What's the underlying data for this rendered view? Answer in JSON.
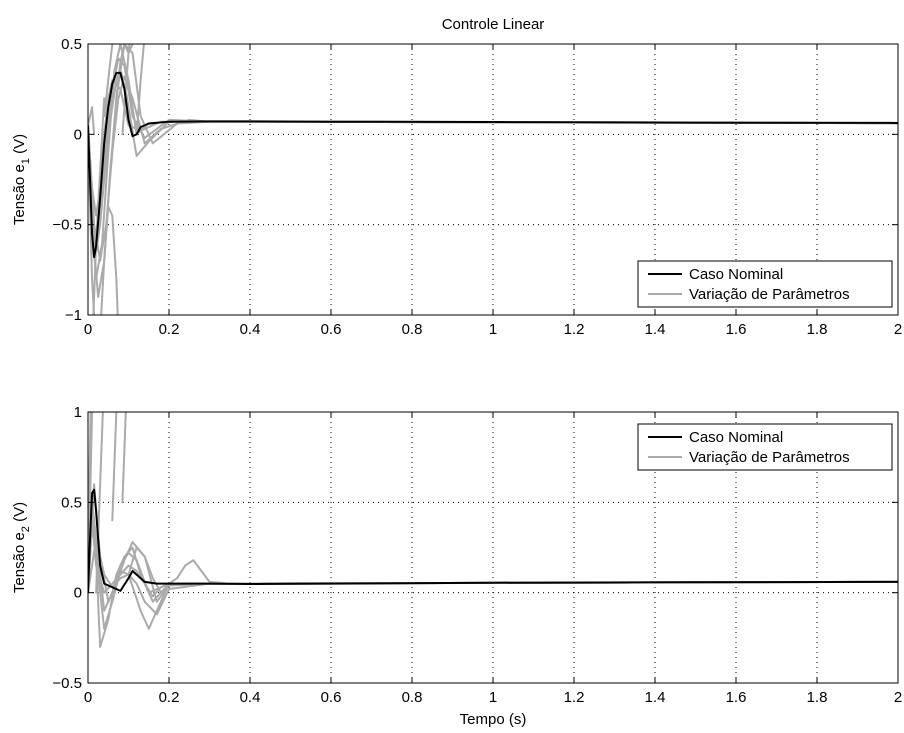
{
  "chart_data": [
    {
      "type": "line",
      "title": "Controle Linear",
      "xlabel": "",
      "ylabel_main": "Tensão e",
      "ylabel_sub": "1",
      "ylabel_unit": " (V)",
      "xlim": [
        0,
        2
      ],
      "ylim": [
        -1,
        0.5
      ],
      "xticks": [
        0,
        0.2,
        0.4,
        0.6,
        0.8,
        1,
        1.2,
        1.4,
        1.6,
        1.8,
        2
      ],
      "xtick_labels": [
        "0",
        "0.2",
        "0.4",
        "0.6",
        "0.8",
        "1",
        "1.2",
        "1.4",
        "1.6",
        "1.8",
        "2"
      ],
      "yticks": [
        -1,
        -0.5,
        0,
        0.5
      ],
      "ytick_labels": [
        "−1",
        "−0.5",
        "0",
        "0.5"
      ],
      "grid": true,
      "legend_position": "bottom-right",
      "legend": [
        "Caso Nominal",
        "Variação de Parâmetros"
      ],
      "colors": {
        "nominal": "#000000",
        "variation": "#aaaaaa"
      },
      "series": [
        {
          "name": "Caso Nominal",
          "x": [
            0,
            0.005,
            0.01,
            0.015,
            0.02,
            0.03,
            0.04,
            0.05,
            0.06,
            0.07,
            0.08,
            0.09,
            0.1,
            0.11,
            0.12,
            0.13,
            0.15,
            0.2,
            0.3,
            0.4,
            0.6,
            1.0,
            1.5,
            2.0
          ],
          "y": [
            0.05,
            -0.25,
            -0.55,
            -0.68,
            -0.62,
            -0.35,
            -0.05,
            0.15,
            0.28,
            0.34,
            0.34,
            0.25,
            0.08,
            -0.01,
            0.0,
            0.04,
            0.06,
            0.07,
            0.072,
            0.072,
            0.07,
            0.068,
            0.065,
            0.063
          ]
        },
        {
          "name": "Variação de Parâmetros",
          "runs": [
            {
              "x": [
                0,
                0.01,
                0.02,
                0.035,
                0.05,
                0.065,
                0.08,
                0.1,
                0.12,
                0.15,
                0.2,
                0.3,
                2.0
              ],
              "y": [
                0.05,
                -0.5,
                -0.8,
                -0.6,
                -0.1,
                0.35,
                0.5,
                0.3,
                0.0,
                0.06,
                0.07,
                0.07,
                0.062
              ]
            },
            {
              "x": [
                0,
                0.01,
                0.02,
                0.03,
                0.045,
                0.06,
                0.075,
                0.09,
                0.11,
                0.14,
                0.2,
                0.3,
                2.0
              ],
              "y": [
                0.05,
                -0.4,
                -0.6,
                -0.45,
                -0.05,
                0.25,
                0.42,
                0.38,
                0.1,
                -0.02,
                0.08,
                0.07,
                0.062
              ]
            },
            {
              "x": [
                0,
                0.012,
                0.025,
                0.04,
                0.055,
                0.07,
                0.09,
                0.11,
                0.13,
                0.16,
                0.22,
                0.3,
                2.0
              ],
              "y": [
                0.05,
                -0.55,
                -0.9,
                -0.7,
                -0.2,
                0.2,
                0.5,
                0.45,
                0.1,
                -0.05,
                0.06,
                0.07,
                0.062
              ]
            },
            {
              "x": [
                0,
                0.01,
                0.02,
                0.03,
                0.04,
                0.05,
                0.06,
                0.08,
                0.1,
                0.13,
                0.18,
                0.3,
                2.0
              ],
              "y": [
                0.05,
                -0.3,
                -0.45,
                -0.3,
                0.0,
                0.2,
                0.3,
                0.25,
                0.05,
                0.02,
                0.07,
                0.07,
                0.062
              ]
            },
            {
              "x": [
                0,
                0.01,
                0.02,
                0.03,
                0.05,
                0.07,
                0.08,
                0.095,
                0.12,
                0.15,
                0.2,
                0.3,
                2.0
              ],
              "y": [
                0.05,
                -0.35,
                -0.65,
                -0.5,
                0.0,
                0.3,
                0.36,
                0.22,
                -0.12,
                -0.04,
                0.07,
                0.072,
                0.062
              ]
            },
            {
              "x": [
                0,
                0.015,
                0.03,
                0.045,
                0.06,
                0.075,
                0.09,
                0.11,
                0.14,
                0.18,
                0.25,
                0.3,
                2.0
              ],
              "y": [
                0.05,
                -0.5,
                -0.7,
                -0.5,
                -0.1,
                0.2,
                0.32,
                0.2,
                -0.05,
                0.03,
                0.08,
                0.07,
                0.062
              ]
            },
            {
              "x": [
                0,
                0.005,
                0.01,
                0.015,
                0.02,
                0.025,
                0.03
              ],
              "y": [
                0.05,
                -0.4,
                -0.8,
                -1.0,
                -1.2,
                -1.4,
                -1.6
              ]
            },
            {
              "x": [
                0.01,
                0.015,
                0.02,
                0.025,
                0.03,
                0.035,
                0.04
              ],
              "y": [
                -1.2,
                -0.9,
                -0.6,
                -0.4,
                -0.2,
                0.0,
                0.2
              ]
            },
            {
              "x": [
                0.03,
                0.04,
                0.05,
                0.06,
                0.07,
                0.075
              ],
              "y": [
                -1.1,
                -0.7,
                -0.4,
                -0.45,
                -0.8,
                -1.1
              ]
            },
            {
              "x": [
                0.04,
                0.05,
                0.06,
                0.07,
                0.08,
                0.09
              ],
              "y": [
                0.1,
                0.3,
                0.5,
                0.65,
                0.8,
                0.9
              ]
            },
            {
              "x": [
                0.07,
                0.08,
                0.09,
                0.1,
                0.11,
                0.12
              ],
              "y": [
                0.2,
                0.4,
                0.5,
                0.45,
                0.5,
                0.7
              ]
            },
            {
              "x": [
                0.085,
                0.095,
                0.1,
                0.105,
                0.11
              ],
              "y": [
                0.0,
                0.3,
                0.45,
                0.55,
                0.7
              ]
            },
            {
              "x": [
                0.12,
                0.13,
                0.14,
                0.15,
                0.16
              ],
              "y": [
                0.0,
                0.3,
                0.55,
                0.75,
                0.9
              ]
            },
            {
              "x": [
                0.0,
                0.005,
                0.01,
                0.015
              ],
              "y": [
                0.05,
                0.1,
                0.15,
                0.0
              ]
            }
          ]
        }
      ]
    },
    {
      "type": "line",
      "title": "",
      "xlabel": "Tempo (s)",
      "ylabel_main": "Tensão e",
      "ylabel_sub": "2",
      "ylabel_unit": " (V)",
      "xlim": [
        0,
        2
      ],
      "ylim": [
        -0.5,
        1
      ],
      "xticks": [
        0,
        0.2,
        0.4,
        0.6,
        0.8,
        1,
        1.2,
        1.4,
        1.6,
        1.8,
        2
      ],
      "xtick_labels": [
        "0",
        "0.2",
        "0.4",
        "0.6",
        "0.8",
        "1",
        "1.2",
        "1.4",
        "1.6",
        "1.8",
        "2"
      ],
      "yticks": [
        -0.5,
        0,
        0.5,
        1
      ],
      "ytick_labels": [
        "−0.5",
        "0",
        "0.5",
        "1"
      ],
      "grid": true,
      "legend_position": "top-right",
      "legend": [
        "Caso Nominal",
        "Variação de Parâmetros"
      ],
      "colors": {
        "nominal": "#000000",
        "variation": "#aaaaaa"
      },
      "series": [
        {
          "name": "Caso Nominal",
          "x": [
            0,
            0.005,
            0.01,
            0.015,
            0.02,
            0.03,
            0.04,
            0.06,
            0.08,
            0.1,
            0.11,
            0.12,
            0.14,
            0.17,
            0.2,
            0.3,
            0.4,
            0.6,
            1.0,
            1.5,
            2.0
          ],
          "y": [
            0.0,
            0.3,
            0.55,
            0.57,
            0.45,
            0.15,
            0.05,
            0.03,
            0.01,
            0.08,
            0.12,
            0.1,
            0.06,
            0.05,
            0.05,
            0.05,
            0.048,
            0.05,
            0.055,
            0.058,
            0.06
          ]
        },
        {
          "name": "Variação de Parâmetros",
          "runs": [
            {
              "x": [
                0,
                0.005,
                0.01,
                0.015,
                0.02
              ],
              "y": [
                0.0,
                0.5,
                1.0,
                1.3,
                1.6
              ]
            },
            {
              "x": [
                0,
                0.004,
                0.008,
                0.012
              ],
              "y": [
                0.1,
                0.7,
                1.2,
                1.6
              ]
            },
            {
              "x": [
                0.02,
                0.025,
                0.03,
                0.035,
                0.04
              ],
              "y": [
                0.0,
                0.3,
                0.6,
                0.9,
                1.2
              ]
            },
            {
              "x": [
                0.06,
                0.065,
                0.07,
                0.075
              ],
              "y": [
                0.4,
                0.7,
                1.0,
                1.3
              ]
            },
            {
              "x": [
                0.085,
                0.09,
                0.095,
                0.1
              ],
              "y": [
                0.5,
                0.8,
                1.1,
                1.4
              ]
            },
            {
              "x": [
                0,
                0.01,
                0.02,
                0.03,
                0.05,
                0.07,
                0.09,
                0.11,
                0.13,
                0.16,
                0.2,
                0.3,
                2.0
              ],
              "y": [
                0.0,
                0.4,
                0.2,
                -0.3,
                -0.15,
                0.1,
                0.2,
                0.25,
                0.1,
                -0.05,
                0.05,
                0.05,
                0.06
              ]
            },
            {
              "x": [
                0,
                0.01,
                0.02,
                0.04,
                0.06,
                0.08,
                0.1,
                0.12,
                0.15,
                0.2,
                0.3,
                2.0
              ],
              "y": [
                0.0,
                0.5,
                0.3,
                -0.1,
                0.0,
                0.15,
                0.22,
                0.18,
                0.0,
                0.05,
                0.05,
                0.06
              ]
            },
            {
              "x": [
                0,
                0.015,
                0.03,
                0.05,
                0.07,
                0.09,
                0.11,
                0.14,
                0.17,
                0.2,
                0.3,
                2.0
              ],
              "y": [
                0.0,
                0.6,
                0.2,
                -0.05,
                0.05,
                0.18,
                0.28,
                0.2,
                -0.05,
                0.04,
                0.05,
                0.06
              ]
            },
            {
              "x": [
                0,
                0.01,
                0.025,
                0.04,
                0.06,
                0.08,
                0.1,
                0.13,
                0.15,
                0.17,
                0.2,
                0.3,
                2.0
              ],
              "y": [
                0.0,
                0.45,
                0.1,
                -0.2,
                -0.05,
                0.12,
                0.1,
                -0.1,
                -0.2,
                -0.1,
                0.05,
                0.05,
                0.06
              ]
            },
            {
              "x": [
                0,
                0.01,
                0.02,
                0.04,
                0.06,
                0.08,
                0.1,
                0.12,
                0.14,
                0.16,
                0.18,
                0.2,
                0.3,
                2.0
              ],
              "y": [
                0.0,
                0.4,
                0.15,
                0.0,
                0.05,
                0.1,
                0.15,
                0.12,
                0.05,
                -0.02,
                0.03,
                0.05,
                0.05,
                0.06
              ]
            },
            {
              "x": [
                0,
                0.02,
                0.04,
                0.06,
                0.08,
                0.1,
                0.12,
                0.14,
                0.17,
                0.2,
                0.3,
                2.0
              ],
              "y": [
                0.0,
                0.3,
                0.1,
                0.03,
                0.08,
                0.1,
                0.05,
                -0.05,
                -0.12,
                0.02,
                0.05,
                0.06
              ]
            },
            {
              "x": [
                0.2,
                0.22,
                0.24,
                0.26,
                0.28,
                0.3,
                0.35,
                2.0
              ],
              "y": [
                0.05,
                0.08,
                0.15,
                0.18,
                0.12,
                0.06,
                0.05,
                0.06
              ]
            },
            {
              "x": [
                0.1,
                0.12,
                0.14,
                0.16,
                0.18,
                0.2,
                0.25,
                2.0
              ],
              "y": [
                0.1,
                0.25,
                0.2,
                0.08,
                0.0,
                0.04,
                0.05,
                0.06
              ]
            }
          ]
        }
      ]
    }
  ]
}
